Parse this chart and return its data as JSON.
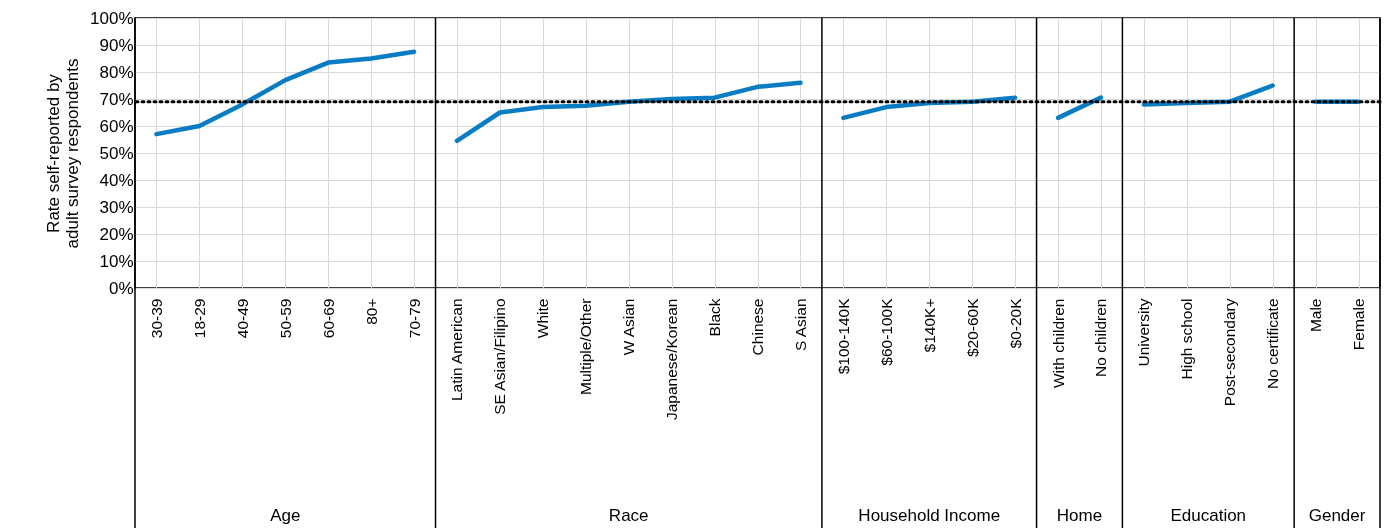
{
  "chart_data": {
    "type": "line",
    "ylabel": "Rate self-reported by adult survey respondents",
    "categories": [
      "30-39",
      "18-29",
      "40-49",
      "50-59",
      "60-69",
      "80+",
      "70-79",
      "Latin American",
      "SE Asian/Filipino",
      "White",
      "Multiple/Other",
      "W Asian",
      "Japanese/Korean",
      "Black",
      "Chinese",
      "S Asian",
      "$100-140K",
      "$60-100K",
      "$140K+",
      "$20-60K",
      "$0-20K",
      "With children",
      "No children",
      "University",
      "High school",
      "Post-secondary",
      "No certificate",
      "Male",
      "Female"
    ],
    "series": [
      {
        "color": "#0a7cc4",
        "values": [
          57,
          60,
          68,
          77,
          83.5,
          85,
          87.5,
          null,
          null,
          null,
          null,
          null,
          null,
          null,
          null,
          null,
          null,
          null,
          null,
          null,
          null,
          null,
          null,
          null,
          null,
          null,
          null,
          null,
          null
        ]
      },
      {
        "color": "#0a7cc4",
        "values": [
          null,
          null,
          null,
          null,
          null,
          null,
          null,
          54.5,
          65,
          67,
          67.5,
          69,
          70,
          70.5,
          74.5,
          76,
          null,
          null,
          null,
          null,
          null,
          null,
          null,
          null,
          null,
          null,
          null,
          null,
          null
        ]
      },
      {
        "color": "#0a7cc4",
        "values": [
          null,
          null,
          null,
          null,
          null,
          null,
          null,
          null,
          null,
          null,
          null,
          null,
          null,
          null,
          null,
          null,
          63,
          67,
          68.5,
          69,
          70.5,
          null,
          null,
          null,
          null,
          null,
          null,
          null,
          null
        ]
      },
      {
        "color": "#0a7cc4",
        "values": [
          null,
          null,
          null,
          null,
          null,
          null,
          null,
          null,
          null,
          null,
          null,
          null,
          null,
          null,
          null,
          null,
          null,
          null,
          null,
          null,
          null,
          63,
          70.5,
          null,
          null,
          null,
          null,
          null,
          null
        ]
      },
      {
        "color": "#0a7cc4",
        "values": [
          null,
          null,
          null,
          null,
          null,
          null,
          null,
          null,
          null,
          null,
          null,
          null,
          null,
          null,
          null,
          null,
          null,
          null,
          null,
          null,
          null,
          null,
          null,
          68,
          68.5,
          69,
          75,
          null,
          null
        ]
      },
      {
        "color": "#0a7cc4",
        "values": [
          null,
          null,
          null,
          null,
          null,
          null,
          null,
          null,
          null,
          null,
          null,
          null,
          null,
          null,
          null,
          null,
          null,
          null,
          null,
          null,
          null,
          null,
          null,
          null,
          null,
          null,
          null,
          69,
          69
        ]
      }
    ],
    "annotations": [
      "Age",
      "Race",
      "Household Income",
      "Home",
      "Education",
      "Gender"
    ],
    "ylim": [
      0,
      100
    ],
    "yticks": [
      {
        "value": 0,
        "label": "0%"
      },
      {
        "value": 10,
        "label": "10%"
      },
      {
        "value": 20,
        "label": "20%"
      },
      {
        "value": 30,
        "label": "30%"
      },
      {
        "value": 40,
        "label": "40%"
      },
      {
        "value": 50,
        "label": "50%"
      },
      {
        "value": 60,
        "label": "60%"
      },
      {
        "value": 70,
        "label": "70%"
      },
      {
        "value": 80,
        "label": "80%"
      },
      {
        "value": 90,
        "label": "90%"
      },
      {
        "value": 100,
        "label": "100%"
      }
    ],
    "ref_lines": [
      {
        "axis": "y",
        "value": 69,
        "color": "#000000",
        "line_style": "dotted"
      }
    ],
    "grid": true,
    "marker": "none",
    "line_style": "solid"
  }
}
